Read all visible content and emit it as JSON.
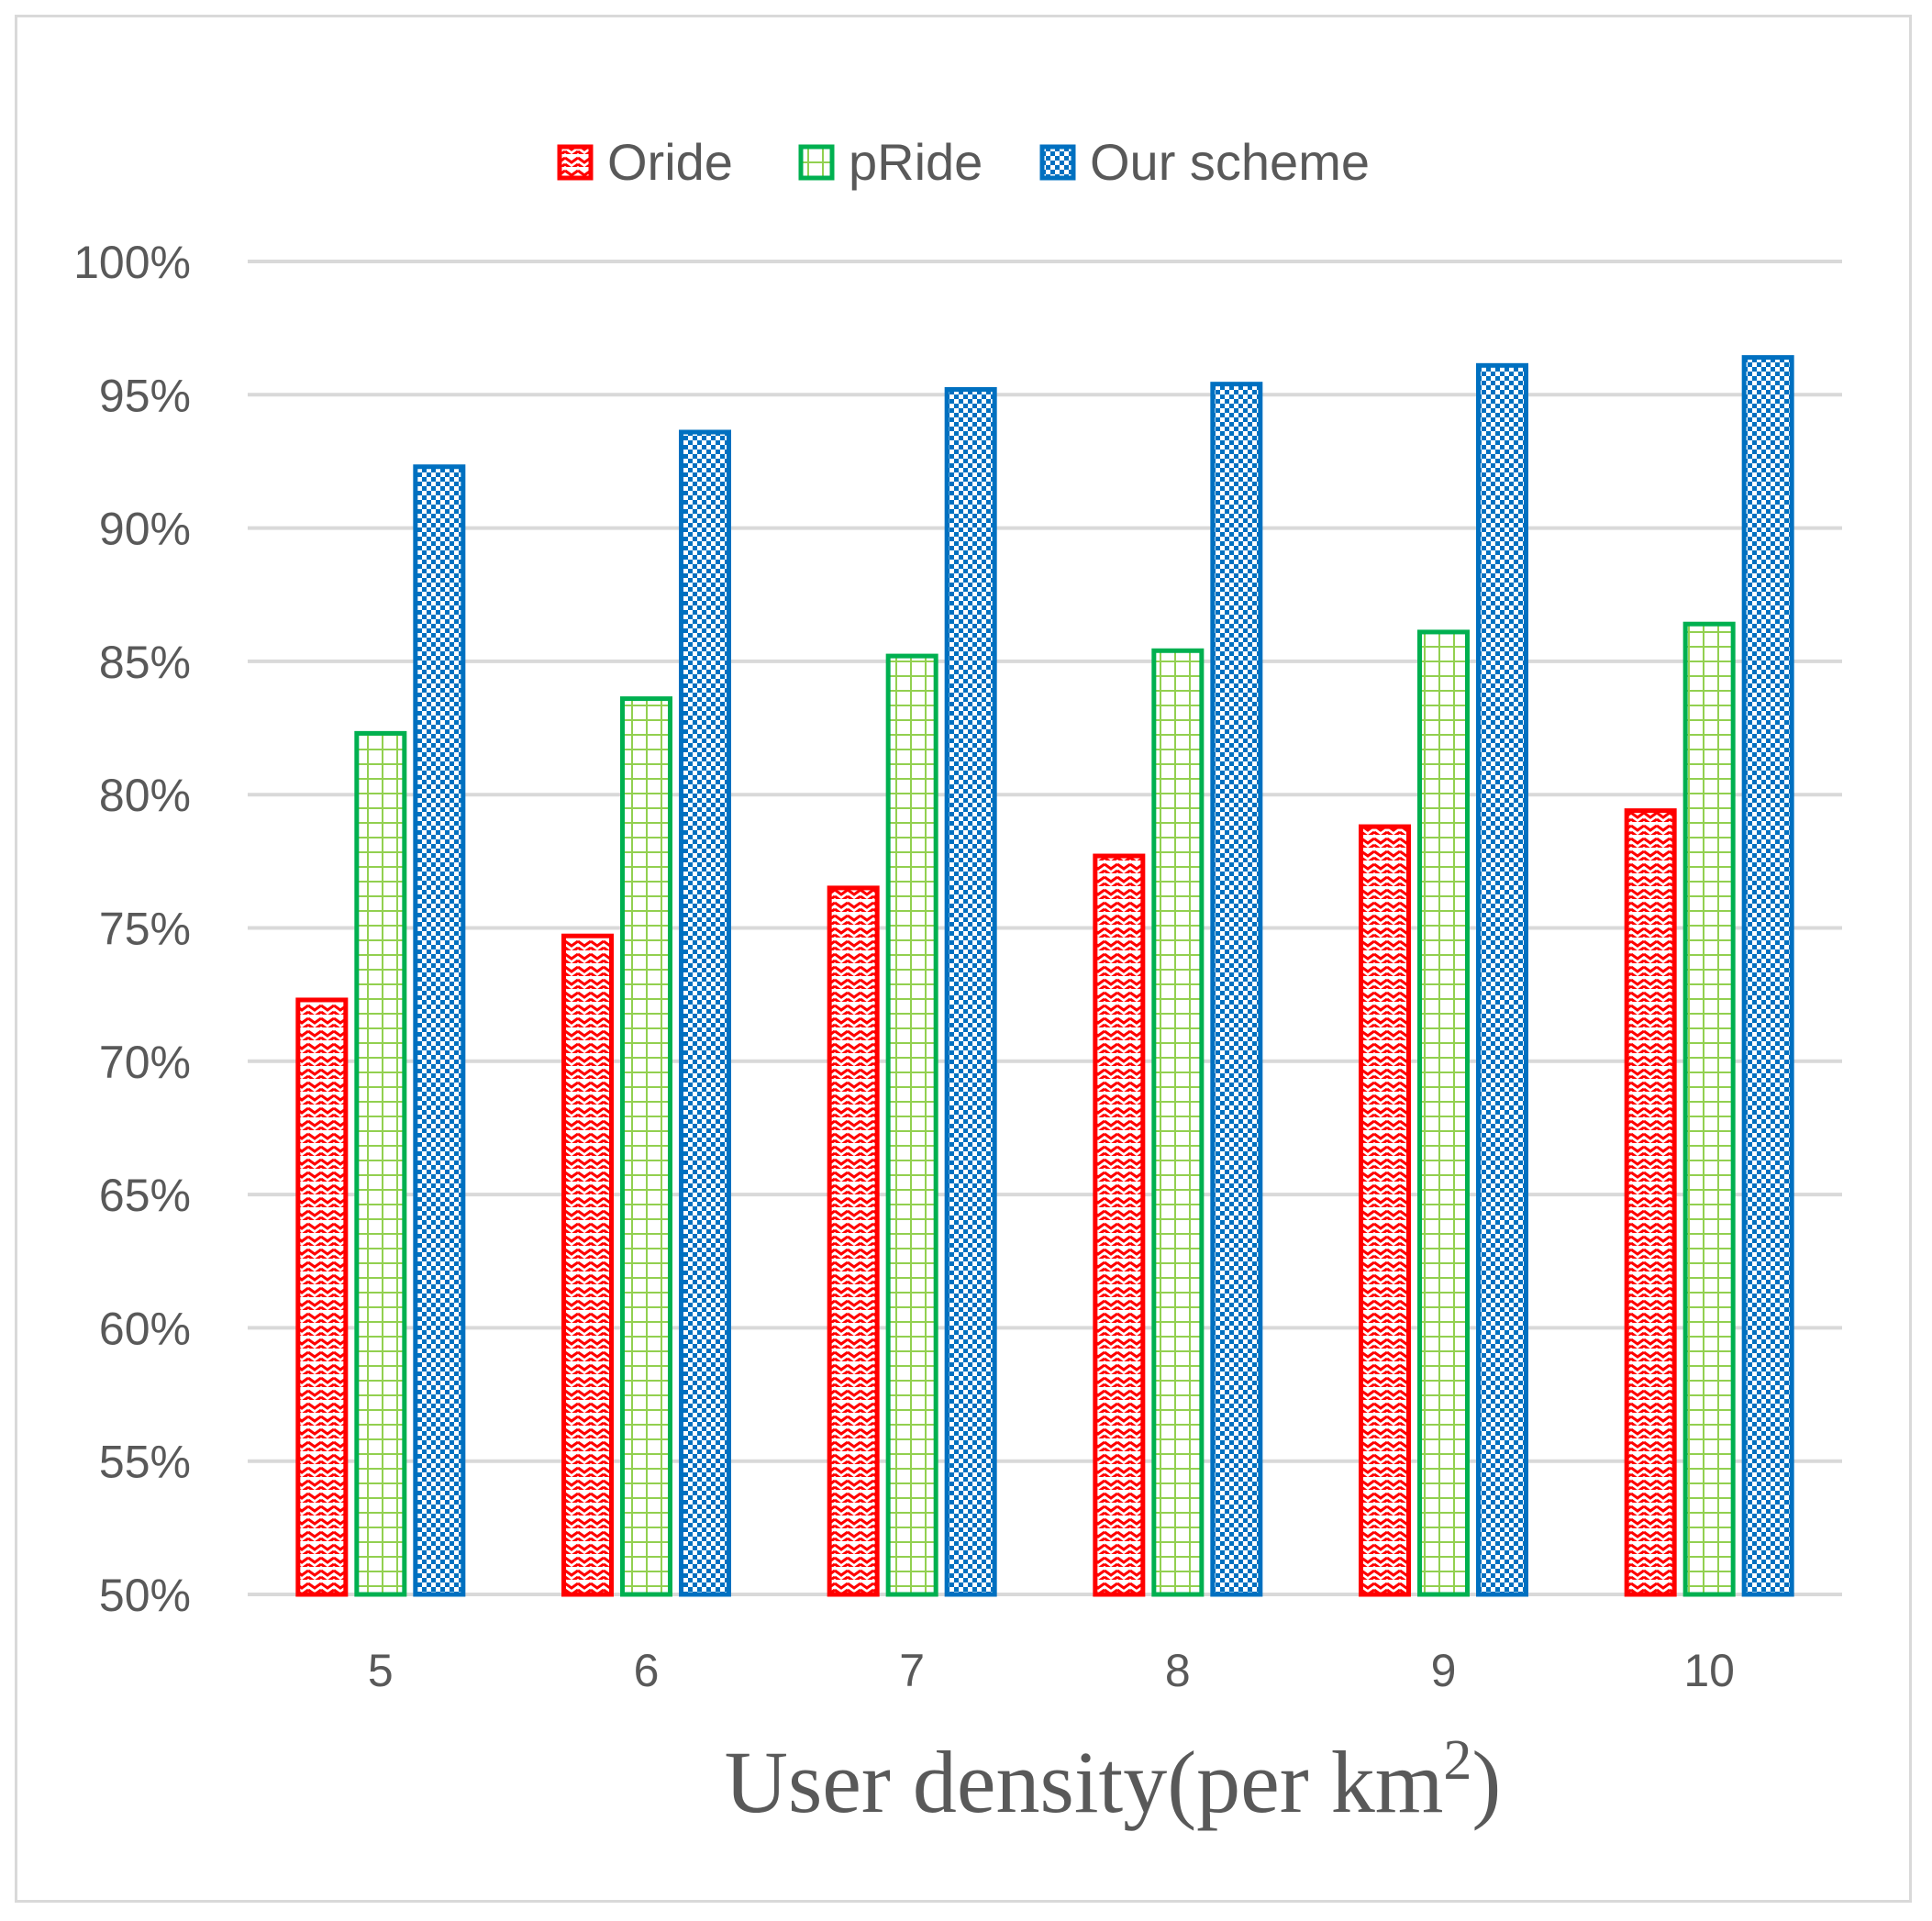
{
  "chart_data": {
    "type": "bar",
    "xlabel": "User density(per km",
    "xlabel_sup": "2",
    "xlabel_end": ")",
    "ylabel": "",
    "ylim": [
      50,
      100
    ],
    "yticks": [
      50,
      55,
      60,
      65,
      70,
      75,
      80,
      85,
      90,
      95,
      100
    ],
    "ytick_labels": [
      "50%",
      "55%",
      "60%",
      "65%",
      "70%",
      "75%",
      "80%",
      "85%",
      "90%",
      "95%",
      "100%"
    ],
    "categories": [
      "5",
      "6",
      "7",
      "8",
      "9",
      "10"
    ],
    "grid": true,
    "legend_position": "top",
    "series": [
      {
        "name": "Oride",
        "color": "#ff0000",
        "pattern": "zigzag",
        "values": [
          72.3,
          74.7,
          76.5,
          77.7,
          78.8,
          79.4
        ]
      },
      {
        "name": "pRide",
        "color": "#00b050",
        "pattern": "grid",
        "values": [
          82.3,
          83.6,
          85.2,
          85.4,
          86.1,
          86.4
        ]
      },
      {
        "name": "Our scheme",
        "color": "#0070c0",
        "pattern": "checker",
        "values": [
          92.3,
          93.6,
          95.2,
          95.4,
          96.1,
          96.4
        ]
      }
    ]
  }
}
